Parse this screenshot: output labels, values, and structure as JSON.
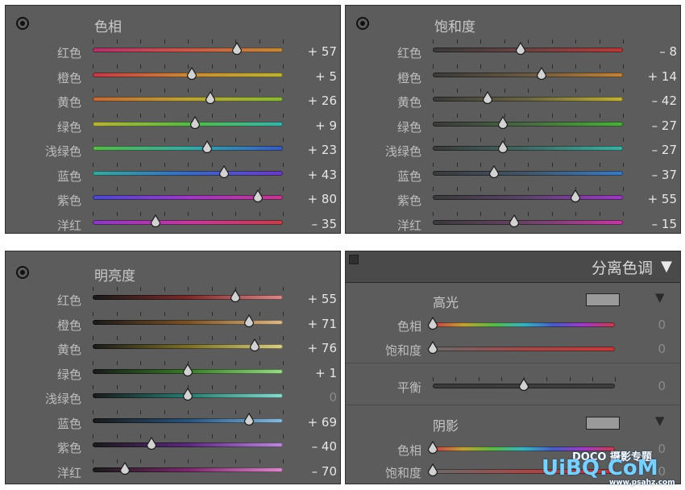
{
  "hue_panel": {
    "title": "色相",
    "icon": "target-adjust-icon",
    "rows": [
      {
        "label": "红色",
        "value": "+ 57",
        "pos": 0.76,
        "colors": [
          "#b0326a",
          "#c65a4a",
          "#c28a3a"
        ]
      },
      {
        "label": "橙色",
        "value": "+ 5",
        "pos": 0.52,
        "colors": [
          "#c03a4a",
          "#c68a3a",
          "#b8b23a"
        ]
      },
      {
        "label": "黄色",
        "value": "+ 26",
        "pos": 0.62,
        "colors": [
          "#c06a3a",
          "#b8a23a",
          "#8ab83a"
        ]
      },
      {
        "label": "绿色",
        "value": "+ 9",
        "pos": 0.54,
        "colors": [
          "#b8b23a",
          "#5ab84a",
          "#3ab0a8"
        ]
      },
      {
        "label": "浅绿色",
        "value": "+ 23",
        "pos": 0.6,
        "colors": [
          "#5ab84a",
          "#3aa8a0",
          "#3a5ac0"
        ]
      },
      {
        "label": "蓝色",
        "value": "+ 43",
        "pos": 0.69,
        "colors": [
          "#3aa89a",
          "#3a6ac0",
          "#6a3ac0"
        ]
      },
      {
        "label": "紫色",
        "value": "+ 80",
        "pos": 0.87,
        "colors": [
          "#4a4ac8",
          "#9a3ac0",
          "#c03a8a"
        ]
      },
      {
        "label": "洋红",
        "value": "– 35",
        "pos": 0.33,
        "colors": [
          "#8a3ac0",
          "#c03a9a",
          "#c0404a"
        ]
      }
    ]
  },
  "saturation_panel": {
    "title": "饱和度",
    "icon": "target-adjust-icon",
    "rows": [
      {
        "label": "红色",
        "value": "– 8",
        "pos": 0.46,
        "colors": [
          "#3a3a3a",
          "#6a4444",
          "#b83a3a"
        ]
      },
      {
        "label": "橙色",
        "value": "+ 14",
        "pos": 0.57,
        "colors": [
          "#3a3a3a",
          "#6a5a44",
          "#c0823a"
        ]
      },
      {
        "label": "黄色",
        "value": "– 42",
        "pos": 0.29,
        "colors": [
          "#3a3a3a",
          "#6a6644",
          "#c0b03a"
        ]
      },
      {
        "label": "绿色",
        "value": "– 27",
        "pos": 0.37,
        "colors": [
          "#3a3a3a",
          "#4a6a44",
          "#4ab03a"
        ]
      },
      {
        "label": "浅绿色",
        "value": "– 27",
        "pos": 0.37,
        "colors": [
          "#3a3a3a",
          "#446a66",
          "#3ab0a0"
        ]
      },
      {
        "label": "蓝色",
        "value": "– 37",
        "pos": 0.32,
        "colors": [
          "#3a3a3a",
          "#44566a",
          "#3a7ac0"
        ]
      },
      {
        "label": "紫色",
        "value": "+ 55",
        "pos": 0.75,
        "colors": [
          "#3a3a3a",
          "#5a446a",
          "#9a3ac0"
        ]
      },
      {
        "label": "洋红",
        "value": "– 15",
        "pos": 0.43,
        "colors": [
          "#3a3a3a",
          "#6a4466",
          "#c03aa0"
        ]
      }
    ]
  },
  "luminance_panel": {
    "title": "明亮度",
    "icon": "target-adjust-icon",
    "rows": [
      {
        "label": "红色",
        "value": "+ 55",
        "pos": 0.75,
        "colors": [
          "#1a1a1a",
          "#7a2a2a",
          "#d88a8a"
        ]
      },
      {
        "label": "橙色",
        "value": "+ 71",
        "pos": 0.82,
        "colors": [
          "#1a1a1a",
          "#7a522a",
          "#d8b88a"
        ]
      },
      {
        "label": "黄色",
        "value": "+ 76",
        "pos": 0.85,
        "colors": [
          "#1a1a1a",
          "#7a6e2a",
          "#d8d08a"
        ]
      },
      {
        "label": "绿色",
        "value": "+ 1",
        "pos": 0.5,
        "colors": [
          "#1a1a1a",
          "#3a7a2a",
          "#9ad88a"
        ]
      },
      {
        "label": "浅绿色",
        "value": "0",
        "pos": 0.5,
        "dim": true,
        "colors": [
          "#1a1a1a",
          "#2a7a70",
          "#8ad8cc"
        ]
      },
      {
        "label": "蓝色",
        "value": "+ 69",
        "pos": 0.82,
        "colors": [
          "#1a1a1a",
          "#2a527a",
          "#8ab8d8"
        ]
      },
      {
        "label": "紫色",
        "value": "– 40",
        "pos": 0.31,
        "colors": [
          "#1a1a1a",
          "#5a2a7a",
          "#b88ad8"
        ]
      },
      {
        "label": "洋红",
        "value": "– 70",
        "pos": 0.17,
        "colors": [
          "#1a1a1a",
          "#7a2a6a",
          "#d88ac8"
        ]
      }
    ]
  },
  "split_toning_panel": {
    "title": "分离色调",
    "collapse_icon": "triangle-down-icon",
    "highlights": {
      "label": "高光",
      "swatch_color": "#9a9a9a",
      "hue_label": "色相",
      "hue_value": "0",
      "hue_pos": 0.0,
      "sat_label": "饱和度",
      "sat_value": "0",
      "sat_pos": 0.0
    },
    "balance": {
      "label": "平衡",
      "value": "0",
      "pos": 0.5
    },
    "shadows": {
      "label": "阴影",
      "swatch_color": "#9a9a9a",
      "hue_label": "色相",
      "hue_value": "0",
      "hue_pos": 0.0,
      "sat_label": "饱和度",
      "sat_value": "0",
      "sat_pos": 0.0
    }
  },
  "watermark": {
    "line1": "DOCO 摄影专题",
    "line2": "UiBQ.CoM",
    "line3": "www.psahz.com"
  }
}
